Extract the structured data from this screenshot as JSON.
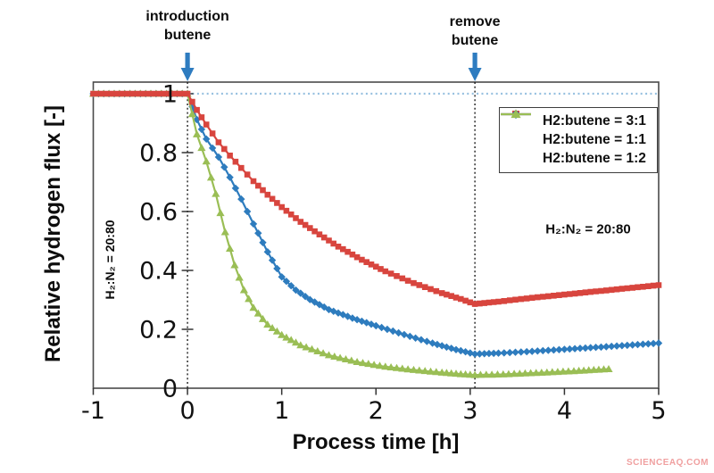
{
  "page": {
    "watermark": "SCIENCEAQ.COM"
  },
  "chart_data": {
    "type": "line",
    "title": "",
    "xlabel": "Process time [h]",
    "ylabel": "Relative hydrogen flux [-]",
    "xlim": [
      -1,
      5
    ],
    "ylim": [
      0,
      1.04
    ],
    "grid": false,
    "legend_position": "upper right inside plot",
    "frame_color": "#4a4a4a",
    "tick_color": "#333333",
    "x_ticks": [
      -1,
      0,
      1,
      2,
      3,
      4,
      5
    ],
    "x_tick_labels": [
      "-1",
      "0",
      "1",
      "2",
      "3",
      "4",
      "5"
    ],
    "y_ticks": [
      0,
      0.2,
      0.4,
      0.6,
      0.8,
      1
    ],
    "y_tick_labels": [
      "0",
      "0.2",
      "0.4",
      "0.6",
      "0.8",
      "1"
    ],
    "marker_step": 0.055,
    "baseline": {
      "y": 1,
      "from_x": 0,
      "to_x": 5,
      "color": "#96c0e0",
      "style": "dotted"
    },
    "event_lines": [
      {
        "x": 0,
        "line1": "introduction",
        "line2": "butene"
      },
      {
        "x": 3.05,
        "line1": "remove",
        "line2": "butene"
      }
    ],
    "arrow_color": "#2e7cc0",
    "event_line_color": "#1f1f1f",
    "inside_labels": {
      "left": "H₂:N₂ = 20:80",
      "right": "H₂:N₂ = 20:80"
    },
    "series": [
      {
        "name": "H2:butene = 3:1",
        "color": "#d8453e",
        "marker": "square",
        "points": [
          [
            -1,
            1
          ],
          [
            0,
            1
          ],
          [
            0.1,
            0.945
          ],
          [
            0.2,
            0.895
          ],
          [
            0.33,
            0.835
          ],
          [
            0.45,
            0.79
          ],
          [
            0.57,
            0.748
          ],
          [
            0.7,
            0.703
          ],
          [
            0.85,
            0.657
          ],
          [
            1,
            0.615
          ],
          [
            1.2,
            0.565
          ],
          [
            1.4,
            0.522
          ],
          [
            1.6,
            0.481
          ],
          [
            1.85,
            0.436
          ],
          [
            2.1,
            0.397
          ],
          [
            2.4,
            0.357
          ],
          [
            2.7,
            0.323
          ],
          [
            2.9,
            0.303
          ],
          [
            3.05,
            0.286
          ],
          [
            3.3,
            0.294
          ],
          [
            3.6,
            0.305
          ],
          [
            4,
            0.318
          ],
          [
            4.5,
            0.334
          ],
          [
            5,
            0.35
          ]
        ]
      },
      {
        "name": "H2:butene = 1:1",
        "color": "#2e7cbe",
        "marker": "diamond",
        "points": [
          [
            -1,
            1
          ],
          [
            0,
            1
          ],
          [
            0.1,
            0.912
          ],
          [
            0.2,
            0.846
          ],
          [
            0.33,
            0.785
          ],
          [
            0.45,
            0.716
          ],
          [
            0.57,
            0.642
          ],
          [
            0.7,
            0.558
          ],
          [
            0.85,
            0.463
          ],
          [
            1,
            0.378
          ],
          [
            1.15,
            0.333
          ],
          [
            1.3,
            0.301
          ],
          [
            1.5,
            0.267
          ],
          [
            1.75,
            0.238
          ],
          [
            2,
            0.212
          ],
          [
            2.3,
            0.182
          ],
          [
            2.6,
            0.153
          ],
          [
            2.85,
            0.131
          ],
          [
            3.05,
            0.116
          ],
          [
            3.3,
            0.119
          ],
          [
            3.6,
            0.124
          ],
          [
            4,
            0.132
          ],
          [
            4.5,
            0.142
          ],
          [
            5,
            0.153
          ]
        ]
      },
      {
        "name": "H2:butene = 1:2",
        "color": "#9abe55",
        "marker": "triangle",
        "points": [
          [
            -1,
            1
          ],
          [
            0,
            1
          ],
          [
            0.1,
            0.862
          ],
          [
            0.2,
            0.77
          ],
          [
            0.3,
            0.66
          ],
          [
            0.4,
            0.53
          ],
          [
            0.5,
            0.418
          ],
          [
            0.6,
            0.333
          ],
          [
            0.7,
            0.273
          ],
          [
            0.85,
            0.216
          ],
          [
            1,
            0.181
          ],
          [
            1.2,
            0.146
          ],
          [
            1.5,
            0.112
          ],
          [
            1.8,
            0.089
          ],
          [
            2.1,
            0.073
          ],
          [
            2.4,
            0.062
          ],
          [
            2.7,
            0.053
          ],
          [
            2.9,
            0.048
          ],
          [
            3.05,
            0.045
          ],
          [
            3.35,
            0.047
          ],
          [
            3.7,
            0.052
          ],
          [
            4.1,
            0.058
          ],
          [
            4.47,
            0.065
          ]
        ]
      }
    ]
  }
}
